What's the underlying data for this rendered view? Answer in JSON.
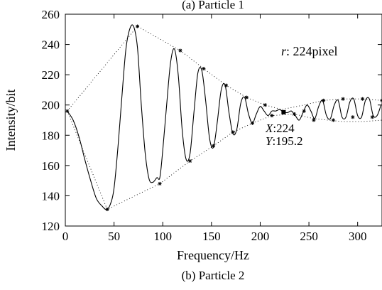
{
  "top_caption": "(a) Particle 1",
  "bottom_caption": "(b) Particle 2",
  "chart_data": {
    "type": "line",
    "xlabel": "Frequency/Hz",
    "ylabel": "Intensity/bit",
    "xlim": [
      0,
      325
    ],
    "ylim": [
      120,
      260
    ],
    "xticks": [
      0,
      50,
      100,
      150,
      200,
      250,
      300
    ],
    "yticks": [
      120,
      140,
      160,
      180,
      200,
      220,
      240,
      260
    ],
    "grid": false,
    "radius_label": {
      "var": "r",
      "text": ": 224pixel"
    },
    "datatip": {
      "x_label": "X",
      "x_value": ":224",
      "y_label": "Y",
      "y_value": ":195.2",
      "x": 224,
      "y": 195.2
    },
    "series": [
      {
        "style": "solid",
        "x": [
          2,
          8,
          14,
          20,
          26,
          32,
          38,
          42,
          46,
          50,
          54,
          58,
          62,
          66,
          70,
          74,
          78,
          82,
          86,
          90,
          94,
          97,
          100,
          104,
          108,
          112,
          116,
          120,
          124,
          128,
          132,
          136,
          140,
          144,
          148,
          152,
          156,
          160,
          164,
          168,
          172,
          176,
          180,
          184,
          188,
          192,
          196,
          200,
          204,
          208,
          212,
          216,
          220,
          224,
          228,
          232,
          236,
          240,
          244,
          248,
          252,
          256,
          260,
          264,
          268,
          272,
          276,
          280,
          284,
          288,
          292,
          296,
          300,
          304,
          308,
          312,
          316,
          320,
          324
        ],
        "y": [
          196,
          190,
          179,
          164,
          150,
          138,
          133,
          131,
          134,
          145,
          172,
          205,
          236,
          250,
          252,
          238,
          200,
          168,
          151,
          149,
          152,
          152,
          170,
          200,
          228,
          237,
          219,
          183,
          164,
          168,
          195,
          221,
          223,
          203,
          178,
          172,
          189,
          210,
          213,
          195,
          181,
          184,
          201,
          205,
          194,
          188,
          194,
          199,
          196,
          193,
          196,
          196,
          197,
          195.2,
          195,
          196,
          193,
          190,
          195,
          200,
          196,
          191,
          199,
          203,
          193,
          191,
          200,
          203,
          192,
          192,
          202,
          204,
          193,
          192,
          203,
          204,
          193,
          193,
          200
        ]
      },
      {
        "style": "dotted",
        "x": [
          2,
          74,
          118,
          142,
          165,
          186,
          205,
          222,
          245,
          265,
          285,
          305,
          325
        ],
        "y": [
          196,
          252,
          236,
          224,
          213,
          205,
          200,
          197,
          200,
          203,
          204,
          204,
          203
        ]
      },
      {
        "style": "dotted",
        "x": [
          2,
          43,
          97,
          128,
          152,
          172,
          192,
          212,
          235,
          255,
          285,
          305,
          325
        ],
        "y": [
          196,
          131,
          148,
          163,
          173,
          182,
          188,
          193,
          194,
          191,
          189,
          189,
          190
        ]
      }
    ],
    "markers": {
      "x": [
        2,
        43,
        74,
        97,
        118,
        128,
        142,
        152,
        165,
        172,
        186,
        192,
        205,
        212,
        224,
        235,
        245,
        255,
        265,
        275,
        285,
        295,
        305,
        315,
        325
      ],
      "y": [
        196,
        131,
        252,
        148,
        236,
        163,
        224,
        173,
        213,
        182,
        205,
        188,
        200,
        193,
        195.2,
        194,
        196,
        190,
        203,
        190,
        204,
        192,
        204,
        192,
        203
      ]
    }
  }
}
